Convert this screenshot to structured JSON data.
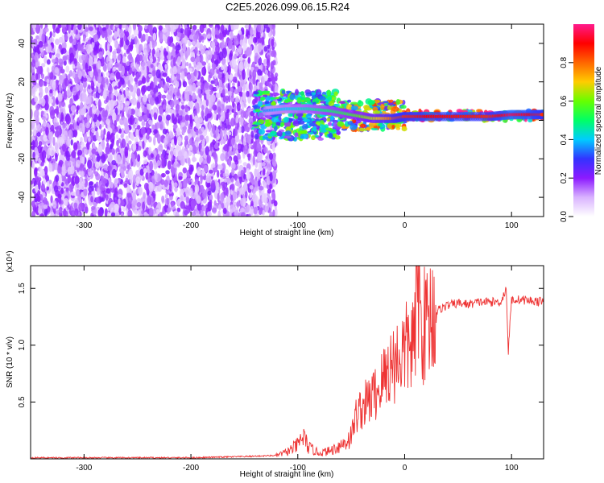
{
  "title": "C2E5.2026.099.06.15.R24",
  "chart_data": [
    {
      "type": "heatmap",
      "title": "C2E5.2026.099.06.15.R24",
      "xlabel": "Height of straight line (km)",
      "ylabel": "Frequency (Hz)",
      "xlim": [
        -350,
        130
      ],
      "ylim": [
        -50,
        50
      ],
      "xticks": [
        -300,
        -200,
        -100,
        0,
        100
      ],
      "yticks": [
        -40,
        -20,
        0,
        20,
        40
      ],
      "colorbar": {
        "label": "Normalized spectral amplitude",
        "range": [
          0,
          1
        ],
        "ticks": [
          0.0,
          0.2,
          0.4,
          0.6,
          0.8
        ],
        "tick_labels": [
          "0.0",
          "0.2",
          "0.4",
          "0.6",
          "0.8"
        ],
        "colormap": [
          "#ffffff",
          "#d9b3ff",
          "#8c1aff",
          "#3333ff",
          "#00ccff",
          "#00ff66",
          "#66ff00",
          "#ffcc00",
          "#ff6600",
          "#ff0000",
          "#ff1a8c"
        ]
      },
      "regions": [
        {
          "x_range": [
            -350,
            -120
          ],
          "freq_range": [
            -50,
            50
          ],
          "amplitude": 0.15,
          "description": "noise"
        },
        {
          "x_range": [
            -140,
            -60
          ],
          "freq_range": [
            -10,
            15
          ],
          "amplitude": 0.45
        },
        {
          "x_range": [
            -60,
            0
          ],
          "freq_range": [
            -5,
            10
          ],
          "amplitude": 0.6
        },
        {
          "x_range": [
            0,
            130
          ],
          "freq_range": [
            0,
            5
          ],
          "amplitude": 0.9
        }
      ],
      "ridge": {
        "x": [
          -130,
          -110,
          -90,
          -70,
          -50,
          -30,
          -10,
          0,
          20,
          50,
          80,
          100,
          120,
          130
        ],
        "freq": [
          5,
          6,
          6,
          5,
          3,
          1,
          1,
          2,
          2,
          2,
          2,
          3,
          3,
          3
        ],
        "amplitude": [
          0.35,
          0.4,
          0.45,
          0.5,
          0.55,
          0.65,
          0.8,
          0.85,
          0.9,
          0.88,
          0.85,
          0.95,
          0.9,
          0.85
        ]
      }
    },
    {
      "type": "line",
      "xlabel": "Height of straight line (km)",
      "ylabel": "SNR (10 * v/v)",
      "y_multiplier": "(x10⁴)",
      "xlim": [
        -350,
        130
      ],
      "ylim": [
        0,
        1.7
      ],
      "xticks": [
        -300,
        -200,
        -100,
        0,
        100
      ],
      "yticks": [
        0.5,
        1.0,
        1.5
      ],
      "ytick_labels": [
        "0.5",
        "1.0",
        "1.5"
      ],
      "series": [
        {
          "color": "#ee3333",
          "x": [
            -350,
            -200,
            -150,
            -120,
            -110,
            -100,
            -95,
            -90,
            -80,
            -70,
            -60,
            -55,
            -50,
            -45,
            -40,
            -35,
            -30,
            -25,
            -20,
            -15,
            -10,
            -5,
            0,
            5,
            10,
            12,
            15,
            20,
            25,
            30,
            35,
            40,
            50,
            60,
            70,
            80,
            90,
            95,
            97,
            100,
            110,
            120,
            130
          ],
          "y": [
            0.01,
            0.01,
            0.02,
            0.03,
            0.06,
            0.12,
            0.2,
            0.1,
            0.05,
            0.07,
            0.12,
            0.15,
            0.2,
            0.4,
            0.45,
            0.5,
            0.55,
            0.6,
            0.7,
            0.8,
            0.85,
            0.9,
            0.95,
            1.0,
            1.05,
            1.7,
            1.15,
            1.2,
            1.28,
            1.3,
            1.33,
            1.35,
            1.37,
            1.36,
            1.38,
            1.38,
            1.38,
            1.5,
            0.95,
            1.4,
            1.4,
            1.39,
            1.38
          ]
        }
      ]
    }
  ]
}
